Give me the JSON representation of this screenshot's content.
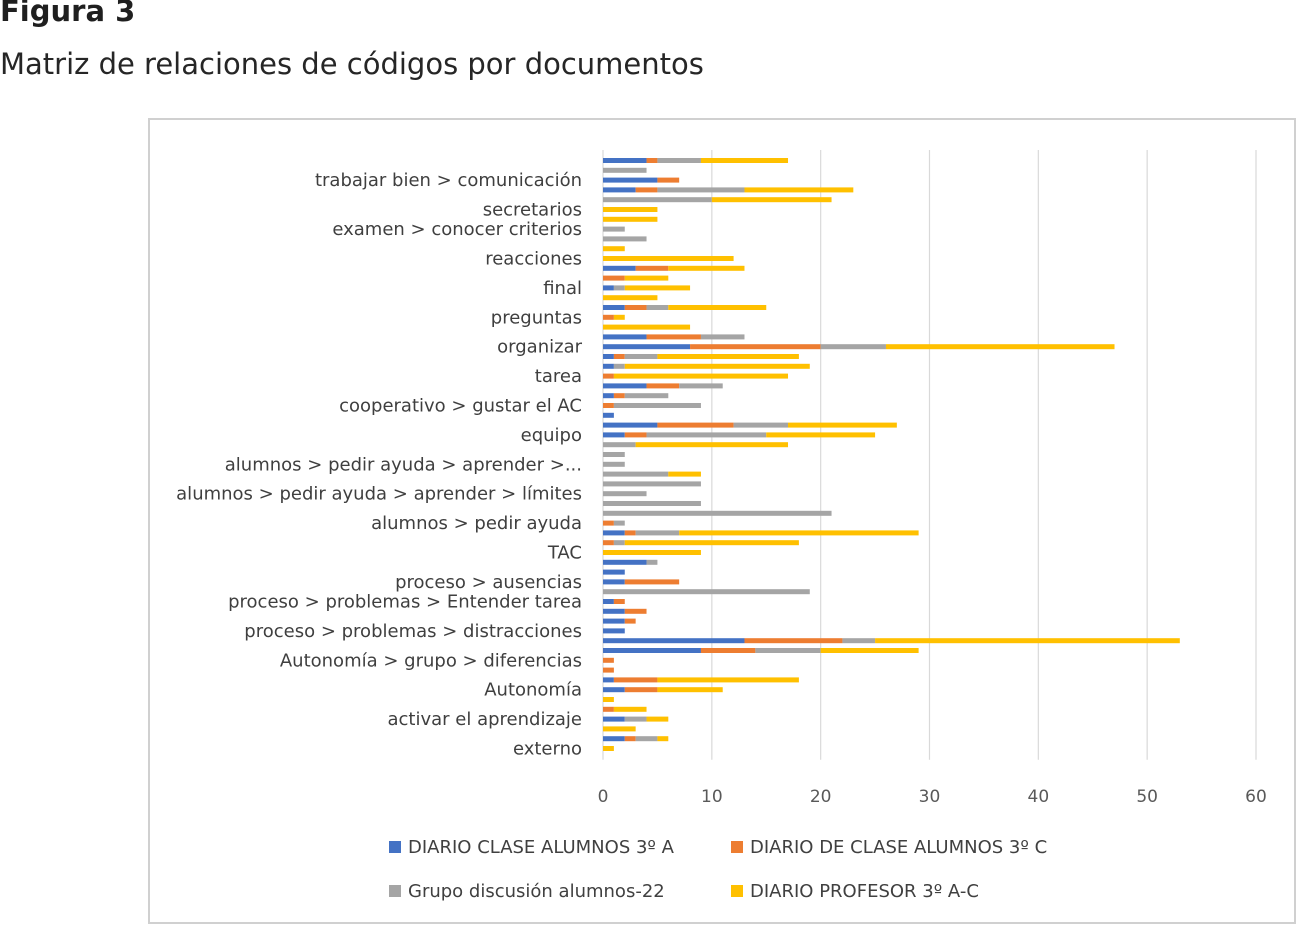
{
  "figure": {
    "label": "Figura 3",
    "caption": "Matriz de relaciones de códigos por documentos"
  },
  "chart_data": {
    "type": "bar",
    "orientation": "horizontal",
    "stacked": true,
    "title": "",
    "xlabel": "",
    "ylabel": "",
    "xlim": [
      0,
      60
    ],
    "xticks": [
      0,
      10,
      20,
      30,
      40,
      50,
      60
    ],
    "grid": true,
    "legend_position": "bottom",
    "category_labels_shown": [
      "trabajar bien > comunicación",
      "secretarios",
      "examen > conocer criterios",
      "reacciones",
      "final",
      "preguntas",
      "organizar",
      "tarea",
      "cooperativo > gustar el AC",
      "equipo",
      "alumnos > pedir ayuda > aprender >...",
      "alumnos > pedir ayuda > aprender > límites",
      "alumnos > pedir ayuda",
      "TAC",
      "proceso > ausencias",
      "proceso > problemas > Entender tarea",
      "proceso > problemas > distracciones",
      "Autonomía > grupo > diferencias",
      "Autonomía",
      "activar el aprendizaje",
      "externo"
    ],
    "rows_top_to_bottom": [
      {
        "label": "",
        "values": [
          4,
          1,
          4,
          8
        ]
      },
      {
        "label": "",
        "values": [
          0,
          0,
          4,
          0
        ]
      },
      {
        "label": "trabajar bien > comunicación",
        "values": [
          5,
          2,
          0,
          0
        ]
      },
      {
        "label": "",
        "values": [
          3,
          2,
          8,
          10
        ]
      },
      {
        "label": "",
        "values": [
          0,
          0,
          10,
          11
        ]
      },
      {
        "label": "secretarios",
        "values": [
          0,
          0,
          0,
          5
        ]
      },
      {
        "label": "",
        "values": [
          0,
          0,
          0,
          5
        ]
      },
      {
        "label": "examen > conocer criterios",
        "values": [
          0,
          0,
          2,
          0
        ]
      },
      {
        "label": "",
        "values": [
          0,
          0,
          4,
          0
        ]
      },
      {
        "label": "",
        "values": [
          0,
          0,
          0,
          2
        ]
      },
      {
        "label": "reacciones",
        "values": [
          0,
          0,
          0,
          12
        ]
      },
      {
        "label": "",
        "values": [
          3,
          3,
          0,
          7
        ]
      },
      {
        "label": "",
        "values": [
          0,
          2,
          0,
          4
        ]
      },
      {
        "label": "final",
        "values": [
          1,
          0,
          1,
          6
        ]
      },
      {
        "label": "",
        "values": [
          0,
          0,
          0,
          5
        ]
      },
      {
        "label": "",
        "values": [
          2,
          2,
          2,
          9
        ]
      },
      {
        "label": "preguntas",
        "values": [
          0,
          1,
          0,
          1
        ]
      },
      {
        "label": "",
        "values": [
          0,
          0,
          0,
          8
        ]
      },
      {
        "label": "",
        "values": [
          4,
          5,
          4,
          0
        ]
      },
      {
        "label": "organizar",
        "values": [
          8,
          12,
          6,
          21
        ]
      },
      {
        "label": "",
        "values": [
          1,
          1,
          3,
          13
        ]
      },
      {
        "label": "",
        "values": [
          1,
          0,
          1,
          17
        ]
      },
      {
        "label": "tarea",
        "values": [
          0,
          1,
          0,
          16
        ]
      },
      {
        "label": "",
        "values": [
          4,
          3,
          4,
          0
        ]
      },
      {
        "label": "",
        "values": [
          1,
          1,
          4,
          0
        ]
      },
      {
        "label": "cooperativo > gustar el AC",
        "values": [
          0,
          1,
          8,
          0
        ]
      },
      {
        "label": "",
        "values": [
          1,
          0,
          0,
          0
        ]
      },
      {
        "label": "",
        "values": [
          5,
          7,
          5,
          10
        ]
      },
      {
        "label": "equipo",
        "values": [
          2,
          2,
          11,
          10
        ]
      },
      {
        "label": "",
        "values": [
          0,
          0,
          3,
          14
        ]
      },
      {
        "label": "",
        "values": [
          0,
          0,
          2,
          0
        ]
      },
      {
        "label": "alumnos > pedir ayuda > aprender >...",
        "values": [
          0,
          0,
          2,
          0
        ]
      },
      {
        "label": "",
        "values": [
          0,
          0,
          6,
          3
        ]
      },
      {
        "label": "",
        "values": [
          0,
          0,
          9,
          0
        ]
      },
      {
        "label": "alumnos > pedir ayuda > aprender > límites",
        "values": [
          0,
          0,
          4,
          0
        ]
      },
      {
        "label": "",
        "values": [
          0,
          0,
          9,
          0
        ]
      },
      {
        "label": "",
        "values": [
          0,
          0,
          21,
          0
        ]
      },
      {
        "label": "alumnos > pedir ayuda",
        "values": [
          0,
          1,
          1,
          0
        ]
      },
      {
        "label": "",
        "values": [
          2,
          1,
          4,
          22
        ]
      },
      {
        "label": "",
        "values": [
          0,
          1,
          1,
          16
        ]
      },
      {
        "label": "TAC",
        "values": [
          0,
          0,
          0,
          9
        ]
      },
      {
        "label": "",
        "values": [
          4,
          0,
          1,
          0
        ]
      },
      {
        "label": "",
        "values": [
          2,
          0,
          0,
          0
        ]
      },
      {
        "label": "proceso > ausencias",
        "values": [
          2,
          5,
          0,
          0
        ]
      },
      {
        "label": "",
        "values": [
          0,
          0,
          19,
          0
        ]
      },
      {
        "label": "proceso > problemas > Entender tarea",
        "values": [
          1,
          1,
          0,
          0
        ]
      },
      {
        "label": "",
        "values": [
          2,
          2,
          0,
          0
        ]
      },
      {
        "label": "",
        "values": [
          2,
          1,
          0,
          0
        ]
      },
      {
        "label": "proceso > problemas > distracciones",
        "values": [
          2,
          0,
          0,
          0
        ]
      },
      {
        "label": "",
        "values": [
          13,
          9,
          3,
          28
        ]
      },
      {
        "label": "",
        "values": [
          9,
          5,
          6,
          9
        ]
      },
      {
        "label": "Autonomía > grupo > diferencias",
        "values": [
          0,
          1,
          0,
          0
        ]
      },
      {
        "label": "",
        "values": [
          0,
          1,
          0,
          0
        ]
      },
      {
        "label": "",
        "values": [
          1,
          4,
          0,
          13
        ]
      },
      {
        "label": "Autonomía",
        "values": [
          2,
          3,
          0,
          6
        ]
      },
      {
        "label": "",
        "values": [
          0,
          0,
          0,
          1
        ]
      },
      {
        "label": "",
        "values": [
          0,
          1,
          0,
          3
        ]
      },
      {
        "label": "activar el aprendizaje",
        "values": [
          2,
          0,
          2,
          2
        ]
      },
      {
        "label": "",
        "values": [
          0,
          0,
          0,
          3
        ]
      },
      {
        "label": "",
        "values": [
          2,
          1,
          2,
          1
        ]
      },
      {
        "label": "externo",
        "values": [
          0,
          0,
          0,
          1
        ]
      }
    ],
    "series": [
      {
        "name": "DIARIO CLASE ALUMNOS 3º A",
        "color": "#4472c4"
      },
      {
        "name": "DIARIO DE CLASE ALUMNOS 3º C",
        "color": "#ed7d31"
      },
      {
        "name": "Grupo discusión alumnos-22",
        "color": "#a5a5a5"
      },
      {
        "name": "DIARIO PROFESOR 3º A-C",
        "color": "#ffc000"
      }
    ]
  }
}
